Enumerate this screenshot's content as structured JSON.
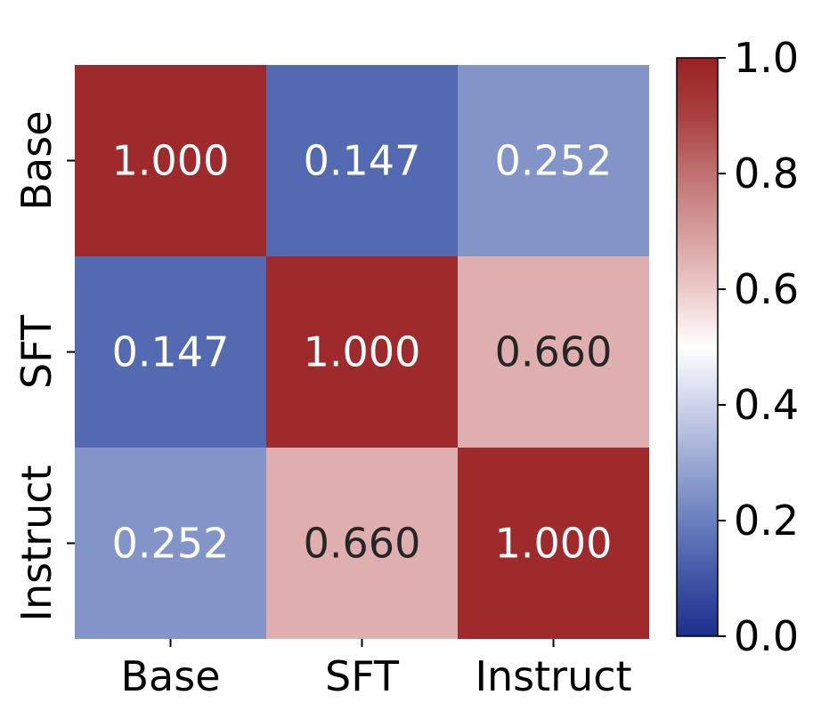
{
  "chart_data": {
    "type": "heatmap",
    "title": "",
    "xlabel": "",
    "ylabel": "",
    "x_categories": [
      "Base",
      "SFT",
      "Instruct"
    ],
    "y_categories": [
      "Base",
      "SFT",
      "Instruct"
    ],
    "values": [
      [
        1.0,
        0.147,
        0.252
      ],
      [
        0.147,
        1.0,
        0.66
      ],
      [
        0.252,
        0.66,
        1.0
      ]
    ],
    "cell_labels": [
      [
        "1.000",
        "0.147",
        "0.252"
      ],
      [
        "0.147",
        "1.000",
        "0.660"
      ],
      [
        "0.252",
        "0.660",
        "1.000"
      ]
    ],
    "colormap": "vlag",
    "vmin": 0.0,
    "vmax": 1.0,
    "colorbar": {
      "ticks": [
        0.0,
        0.2,
        0.4,
        0.6,
        0.8,
        1.0
      ],
      "tick_labels": [
        "0.0",
        "0.2",
        "0.4",
        "0.6",
        "0.8",
        "1.0"
      ]
    },
    "colors": {
      "high": "#9e2a2b",
      "mid": "#ffffff",
      "low": "#1f3a93",
      "label_light": "#ffffff",
      "label_dark": "#262626"
    }
  }
}
